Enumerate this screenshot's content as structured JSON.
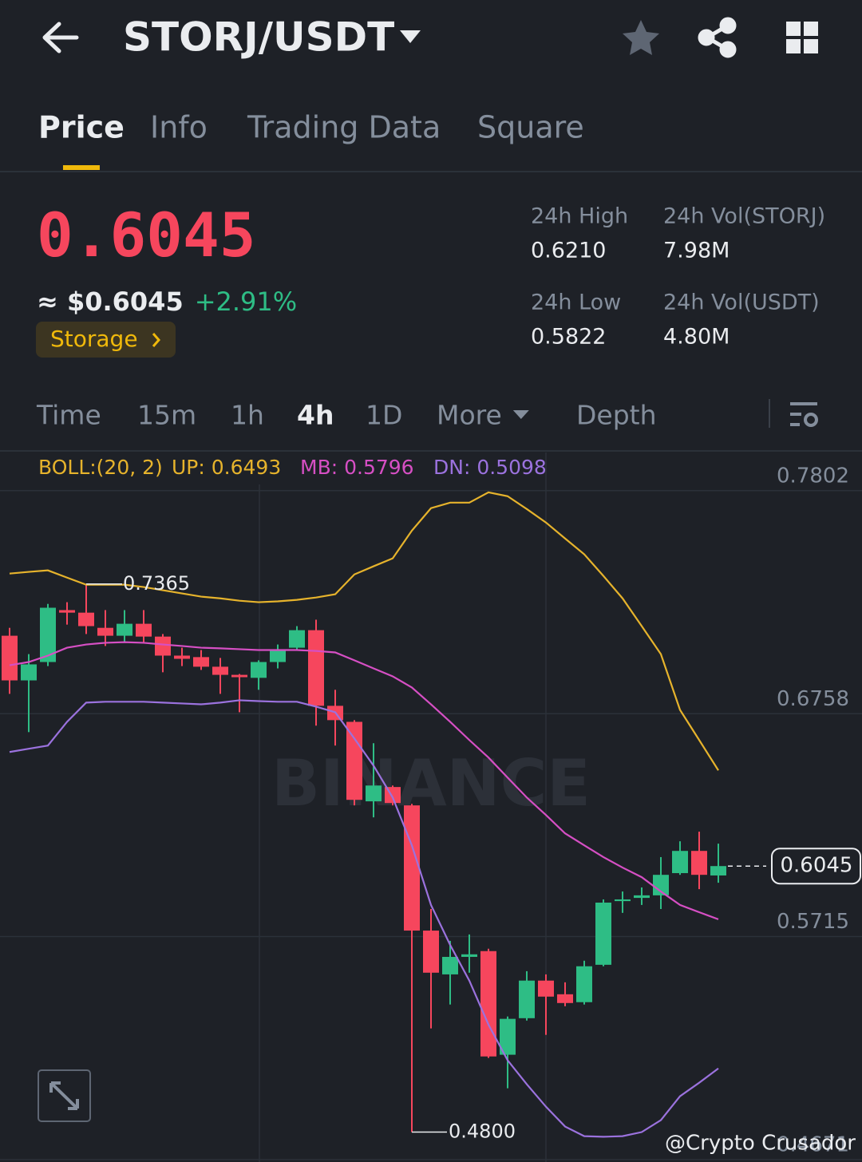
{
  "header": {
    "pair": "STORJ/USDT"
  },
  "tabs": [
    "Price",
    "Info",
    "Trading Data",
    "Square"
  ],
  "active_tab": 0,
  "summary": {
    "price": "0.6045",
    "usd_price": "≈ $0.6045",
    "change": "+2.91%",
    "tag": "Storage",
    "stats": [
      {
        "label": "24h High",
        "value": "0.6210"
      },
      {
        "label": "24h Vol(STORJ)",
        "value": "7.98M"
      },
      {
        "label": "24h Low",
        "value": "0.5822"
      },
      {
        "label": "24h Vol(USDT)",
        "value": "4.80M"
      }
    ]
  },
  "intervals": [
    "Time",
    "15m",
    "1h",
    "4h",
    "1D",
    "More",
    "Depth"
  ],
  "active_interval": 3,
  "chart_data": {
    "type": "candlestick",
    "indicator": "BOLL:(20, 2)",
    "watermark": "BINANCE",
    "up_color": "#2ebd85",
    "down_color": "#f6465d",
    "open": [
      0.7123,
      0.6914,
      0.7,
      0.7243,
      0.7231,
      0.716,
      0.7123,
      0.7179,
      0.7119,
      0.703,
      0.7023,
      0.6978,
      0.694,
      0.6926,
      0.7,
      0.7067,
      0.7149,
      0.6795,
      0.672,
      0.6348,
      0.6415,
      0.6329,
      0.5743,
      0.5538,
      0.562,
      0.5647,
      0.5162,
      0.5333,
      0.5509,
      0.5445,
      0.5408,
      0.5583,
      0.5881,
      0.5896,
      0.5908,
      0.6012,
      0.6116,
      0.6001
    ],
    "high": [
      0.716,
      0.7037,
      0.7272,
      0.728,
      0.7365,
      0.7243,
      0.7243,
      0.7243,
      0.7131,
      0.7067,
      0.7056,
      0.7019,
      0.6944,
      0.7008,
      0.7082,
      0.7168,
      0.7198,
      0.687,
      0.6728,
      0.662,
      0.6422,
      0.6336,
      0.5844,
      0.5695,
      0.5725,
      0.5658,
      0.5341,
      0.5553,
      0.5538,
      0.5501,
      0.5602,
      0.5889,
      0.5926,
      0.5945,
      0.6087,
      0.6161,
      0.6206,
      0.615
    ],
    "low": [
      0.6851,
      0.6672,
      0.6981,
      0.7175,
      0.7131,
      0.7075,
      0.7093,
      0.7093,
      0.6952,
      0.6981,
      0.6963,
      0.6851,
      0.6765,
      0.687,
      0.697,
      0.7056,
      0.6702,
      0.6609,
      0.6329,
      0.6273,
      0.6329,
      0.48,
      0.5285,
      0.5397,
      0.5546,
      0.5147,
      0.5005,
      0.5322,
      0.5255,
      0.5389,
      0.5397,
      0.5576,
      0.5826,
      0.5863,
      0.5844,
      0.6004,
      0.5937,
      0.5967
    ],
    "close": [
      0.6914,
      0.6989,
      0.7254,
      0.7231,
      0.7168,
      0.7123,
      0.7179,
      0.7119,
      0.703,
      0.7015,
      0.6978,
      0.694,
      0.6929,
      0.7,
      0.7056,
      0.7149,
      0.6795,
      0.6728,
      0.6355,
      0.6422,
      0.634,
      0.5743,
      0.5546,
      0.562,
      0.5632,
      0.5154,
      0.533,
      0.5509,
      0.5434,
      0.5404,
      0.5576,
      0.5874,
      0.5889,
      0.5908,
      0.6004,
      0.6116,
      0.6004,
      0.6045
    ],
    "series": [
      {
        "name": "UP: 0.6493",
        "color": "#e6b32c",
        "values": [
          0.7414,
          0.7422,
          0.7429,
          0.7395,
          0.7362,
          0.7362,
          0.7362,
          0.7351,
          0.7336,
          0.7321,
          0.7306,
          0.7298,
          0.7287,
          0.728,
          0.7284,
          0.7291,
          0.7302,
          0.7317,
          0.741,
          0.7448,
          0.7485,
          0.7615,
          0.772,
          0.7746,
          0.7746,
          0.7794,
          0.7776,
          0.7716,
          0.7653,
          0.7578,
          0.7504,
          0.7403,
          0.7298,
          0.7168,
          0.7037,
          0.6776,
          0.6635,
          0.6493
        ]
      },
      {
        "name": "MB: 0.5796",
        "color": "#d64fc4",
        "values": [
          0.6985,
          0.7,
          0.703,
          0.7067,
          0.7082,
          0.709,
          0.7093,
          0.709,
          0.7082,
          0.7075,
          0.7067,
          0.7064,
          0.706,
          0.7056,
          0.7056,
          0.7056,
          0.7052,
          0.7045,
          0.7008,
          0.697,
          0.6933,
          0.6881,
          0.6802,
          0.672,
          0.6635,
          0.6553,
          0.6459,
          0.6366,
          0.6284,
          0.6198,
          0.6142,
          0.6087,
          0.6038,
          0.5993,
          0.5926,
          0.5863,
          0.5829,
          0.5796
        ]
      },
      {
        "name": "DN: 0.5098",
        "color": "#9b72de",
        "values": [
          0.6579,
          0.6594,
          0.6609,
          0.672,
          0.681,
          0.6814,
          0.6814,
          0.6814,
          0.681,
          0.6806,
          0.6802,
          0.681,
          0.6821,
          0.6817,
          0.6814,
          0.6814,
          0.6791,
          0.6765,
          0.6642,
          0.6515,
          0.6366,
          0.6142,
          0.5863,
          0.5676,
          0.5509,
          0.5303,
          0.5136,
          0.5024,
          0.4919,
          0.4826,
          0.4781,
          0.4778,
          0.4781,
          0.48,
          0.4856,
          0.4968,
          0.5031,
          0.5098
        ]
      }
    ],
    "ylim": [
      0.466,
      0.7988
    ],
    "yticks": [
      0.7802,
      0.6758,
      0.5715,
      0.4671
    ],
    "grid": true,
    "last_price": {
      "value": 0.6045,
      "label": "0.6045"
    },
    "high_label": {
      "value": 0.7365,
      "label": "0.7365"
    },
    "low_label": {
      "value": 0.48,
      "label": "0.4800"
    }
  },
  "credit": "@Crypto Crusador"
}
